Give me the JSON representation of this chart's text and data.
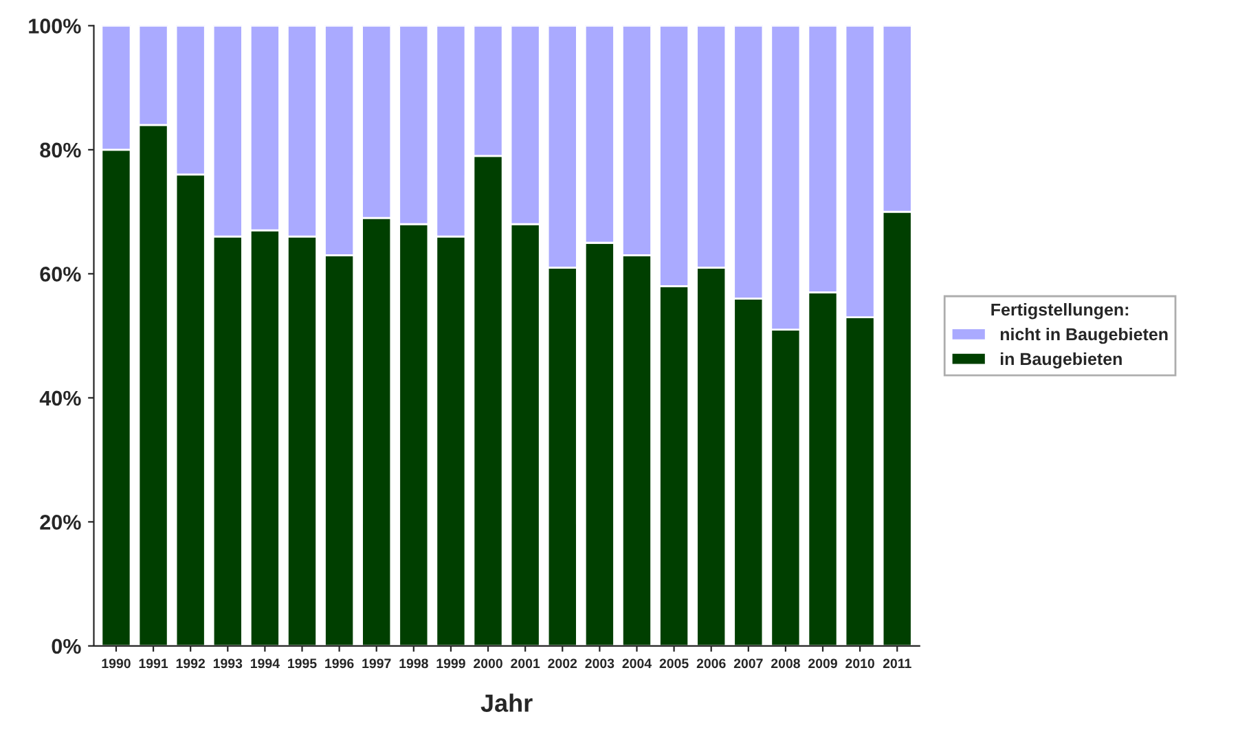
{
  "chart_data": {
    "type": "bar",
    "stacked": true,
    "xlabel": "Jahr",
    "legend_title": "Fertigstellungen:",
    "legend": "right",
    "categories": [
      "1990",
      "1991",
      "1992",
      "1993",
      "1994",
      "1995",
      "1996",
      "1997",
      "1998",
      "1999",
      "2000",
      "2001",
      "2002",
      "2003",
      "2004",
      "2005",
      "2006",
      "2007",
      "2008",
      "2009",
      "2010",
      "2011"
    ],
    "series": [
      {
        "name": "in Baugebieten",
        "color": "#003f00",
        "values": [
          80,
          84,
          76,
          66,
          67,
          66,
          63,
          69,
          68,
          66,
          79,
          68,
          61,
          65,
          63,
          58,
          61,
          56,
          51,
          57,
          53,
          70
        ]
      },
      {
        "name": "nicht in Baugebieten",
        "color": "#aaaaff",
        "values": [
          20,
          16,
          24,
          34,
          33,
          34,
          37,
          31,
          32,
          34,
          21,
          32,
          39,
          35,
          37,
          42,
          39,
          44,
          49,
          43,
          47,
          30
        ]
      }
    ],
    "ylim": [
      0,
      100
    ],
    "yticks": [
      {
        "value": 0,
        "label": "0%"
      },
      {
        "value": 20,
        "label": "20%"
      },
      {
        "value": 40,
        "label": "40%"
      },
      {
        "value": 60,
        "label": "60%"
      },
      {
        "value": 80,
        "label": "80%"
      },
      {
        "value": 100,
        "label": "100%"
      }
    ],
    "grid": false
  }
}
